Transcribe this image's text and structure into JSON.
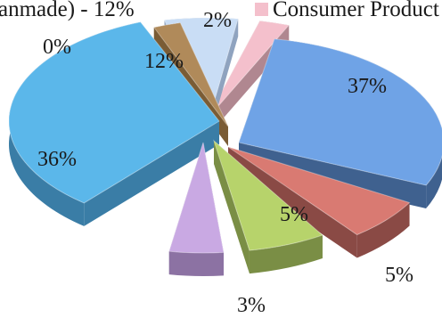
{
  "chart_data": {
    "type": "pie",
    "style": "3d-exploded",
    "legend_placement": "top",
    "legend": [
      {
        "label": "anmade) - 12%",
        "color": "#c9ddf5"
      },
      {
        "label": "Consumer Product",
        "color": "#f4c0cc"
      }
    ],
    "slices": [
      {
        "value": 37,
        "label": "37%",
        "color": "#6fa3e6",
        "side_color": "#3f618f"
      },
      {
        "value": 5,
        "label": "5%",
        "color": "#d97a72",
        "side_color": "#8a4a45"
      },
      {
        "value": 5,
        "label": "5%",
        "color": "#b7d36b",
        "side_color": "#7a8e45"
      },
      {
        "value": 3,
        "label": "3%",
        "color": "#c9a9e3",
        "side_color": "#8c72a3"
      },
      {
        "value": 36,
        "label": "36%",
        "color": "#5bb7ea",
        "side_color": "#3a7da6"
      },
      {
        "value": 0,
        "label": "0%",
        "color": "#b08a5a",
        "side_color": "#7a5c35"
      },
      {
        "value": 12,
        "label": "12%",
        "color": "#c9ddf5",
        "side_color": "#8fa3bf"
      },
      {
        "value": 2,
        "label": "2%",
        "color": "#f4c0cc",
        "side_color": "#b08790"
      }
    ]
  }
}
